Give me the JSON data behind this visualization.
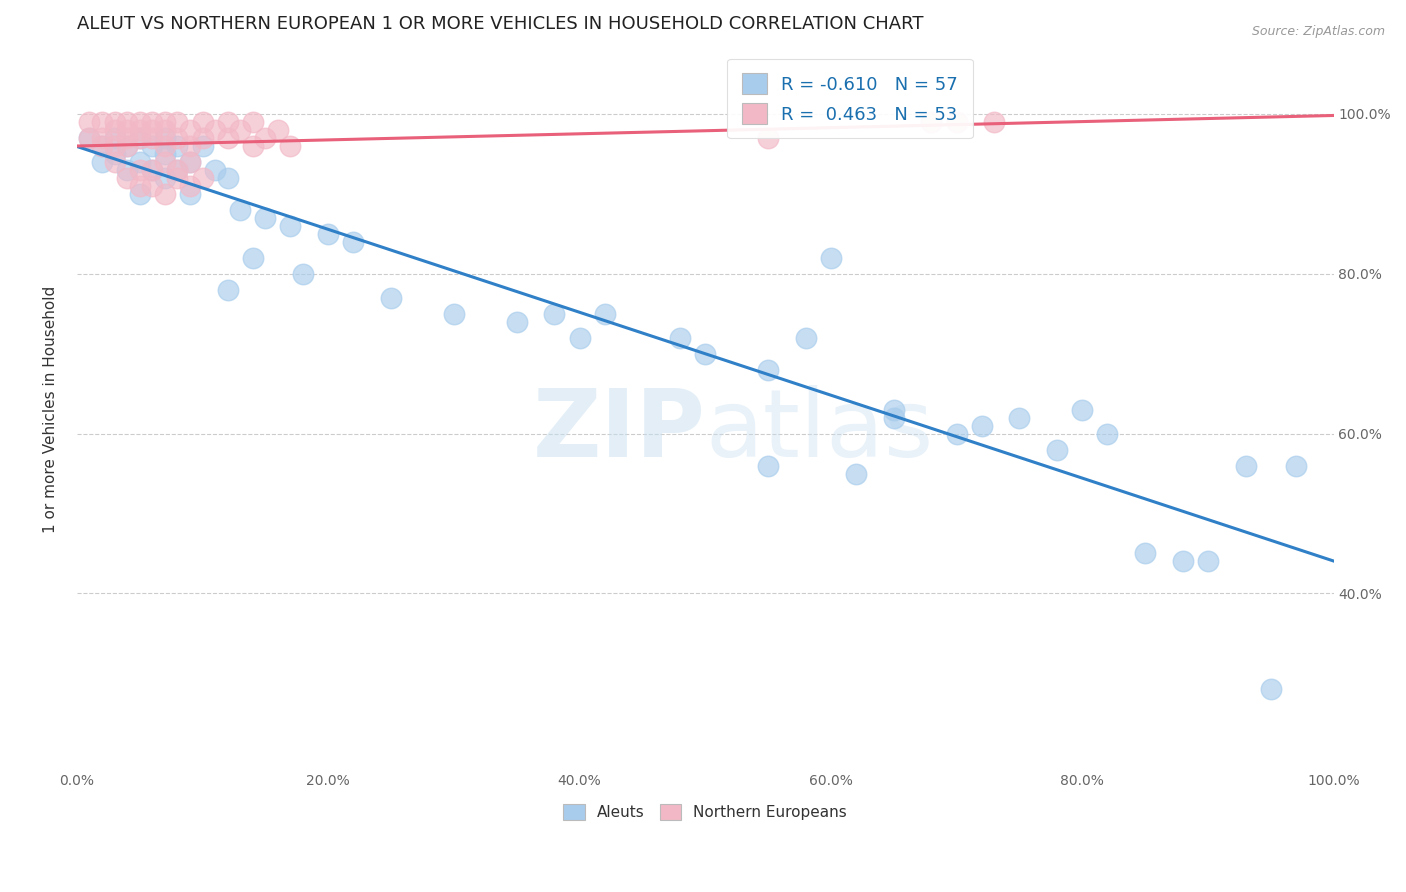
{
  "title": "ALEUT VS NORTHERN EUROPEAN 1 OR MORE VEHICLES IN HOUSEHOLD CORRELATION CHART",
  "source": "Source: ZipAtlas.com",
  "ylabel": "1 or more Vehicles in Household",
  "watermark": "ZIPAtlas",
  "legend_blue_R": "-0.610",
  "legend_blue_N": "57",
  "legend_pink_R": "0.463",
  "legend_pink_N": "53",
  "xlim": [
    0.0,
    1.0
  ],
  "ylim": [
    0.18,
    1.08
  ],
  "aleut_x": [
    0.01,
    0.02,
    0.02,
    0.03,
    0.03,
    0.04,
    0.04,
    0.05,
    0.05,
    0.05,
    0.06,
    0.06,
    0.07,
    0.07,
    0.07,
    0.08,
    0.08,
    0.09,
    0.09,
    0.1,
    0.11,
    0.12,
    0.13,
    0.15,
    0.17,
    0.2,
    0.22,
    0.12,
    0.14,
    0.18,
    0.25,
    0.3,
    0.35,
    0.38,
    0.4,
    0.42,
    0.48,
    0.5,
    0.55,
    0.58,
    0.6,
    0.65,
    0.65,
    0.7,
    0.72,
    0.75,
    0.78,
    0.8,
    0.82,
    0.85,
    0.88,
    0.9,
    0.93,
    0.95,
    0.97,
    0.55,
    0.62
  ],
  "aleut_y": [
    0.97,
    0.96,
    0.94,
    0.97,
    0.95,
    0.96,
    0.93,
    0.97,
    0.94,
    0.9,
    0.96,
    0.93,
    0.97,
    0.95,
    0.92,
    0.96,
    0.93,
    0.94,
    0.9,
    0.96,
    0.93,
    0.92,
    0.88,
    0.87,
    0.86,
    0.85,
    0.84,
    0.78,
    0.82,
    0.8,
    0.77,
    0.75,
    0.74,
    0.75,
    0.72,
    0.75,
    0.72,
    0.7,
    0.68,
    0.72,
    0.82,
    0.63,
    0.62,
    0.6,
    0.61,
    0.62,
    0.58,
    0.63,
    0.6,
    0.45,
    0.44,
    0.44,
    0.56,
    0.28,
    0.56,
    0.56,
    0.55
  ],
  "northern_european_x": [
    0.01,
    0.01,
    0.02,
    0.02,
    0.02,
    0.03,
    0.03,
    0.03,
    0.04,
    0.04,
    0.04,
    0.04,
    0.05,
    0.05,
    0.05,
    0.06,
    0.06,
    0.06,
    0.07,
    0.07,
    0.07,
    0.08,
    0.08,
    0.09,
    0.09,
    0.1,
    0.1,
    0.11,
    0.12,
    0.12,
    0.13,
    0.14,
    0.14,
    0.15,
    0.16,
    0.17,
    0.55,
    0.68,
    0.7,
    0.73,
    0.08,
    0.09,
    0.05,
    0.06,
    0.07,
    0.03,
    0.04,
    0.05,
    0.06,
    0.07,
    0.08,
    0.09,
    0.1
  ],
  "northern_european_y": [
    0.99,
    0.97,
    0.99,
    0.97,
    0.96,
    0.99,
    0.98,
    0.96,
    0.99,
    0.98,
    0.97,
    0.96,
    0.99,
    0.98,
    0.97,
    0.99,
    0.98,
    0.97,
    0.99,
    0.98,
    0.96,
    0.99,
    0.97,
    0.98,
    0.96,
    0.99,
    0.97,
    0.98,
    0.99,
    0.97,
    0.98,
    0.99,
    0.96,
    0.97,
    0.98,
    0.96,
    0.97,
    0.99,
    0.99,
    0.99,
    0.92,
    0.94,
    0.91,
    0.93,
    0.9,
    0.94,
    0.92,
    0.93,
    0.91,
    0.94,
    0.93,
    0.91,
    0.92
  ],
  "blue_color": "#a8ccec",
  "pink_color": "#f2b8c6",
  "blue_line_color": "#3080c8",
  "pink_line_color": "#e8607a",
  "background_color": "#ffffff",
  "grid_color": "#cccccc",
  "title_fontsize": 13,
  "label_fontsize": 11,
  "tick_fontsize": 10,
  "legend_fontsize": 13
}
